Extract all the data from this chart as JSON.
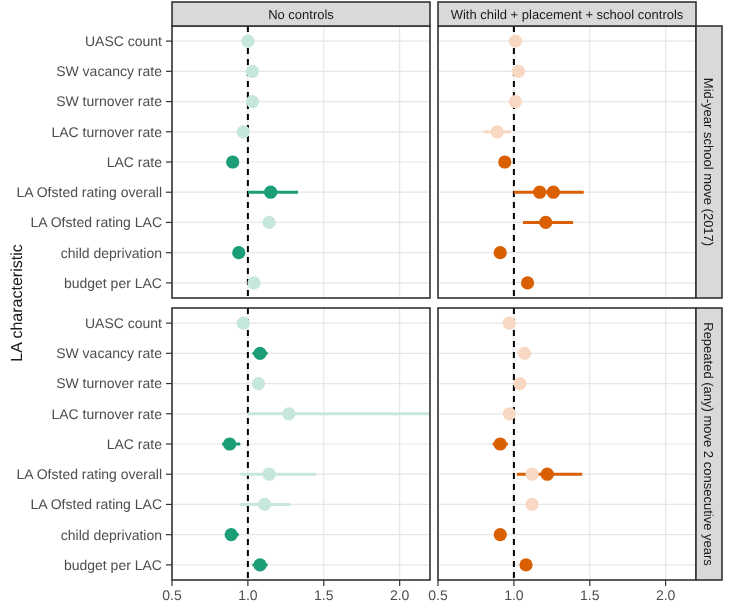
{
  "chart_data": [
    {
      "type": "scatter",
      "orientation": "horizontal",
      "title": "No controls",
      "ylabel": "LA characteristic",
      "categories": [
        "UASC count",
        "SW vacancy rate",
        "SW turnover rate",
        "LAC turnover rate",
        "LAC rate",
        "LA Ofsted rating overall",
        "LA Ofsted rating LAC",
        "child deprivation",
        "budget per LAC"
      ],
      "xlim": [
        0.5,
        2.2
      ],
      "xticks": [
        {
          "value": 0.5,
          "label": null
        },
        {
          "value": 1,
          "label": null
        },
        {
          "value": 1.5,
          "label": null
        },
        {
          "value": 2,
          "label": null
        }
      ],
      "grid": true,
      "marker": "circle",
      "tick_labels": "y",
      "ref_lines": [
        {
          "axis": "x",
          "value": 1,
          "line_style": "dashed",
          "color": "#000000"
        }
      ],
      "series": [
        {
          "color": "#1b9e77",
          "values": [
            null,
            null,
            null,
            null,
            0.9,
            1.15,
            null,
            0.94,
            null
          ],
          "errors": [
            null,
            null,
            null,
            null,
            [
              0.86,
              0.93
            ],
            [
              1.0,
              1.33
            ],
            null,
            [
              0.91,
              0.98
            ],
            null
          ]
        },
        {
          "color": "#c6e7dc",
          "values": [
            1.0,
            1.03,
            1.03,
            0.97,
            null,
            null,
            1.14,
            null,
            1.04
          ],
          "errors": [
            null,
            null,
            null,
            null,
            null,
            null,
            null,
            null,
            [
              1.01,
              1.07
            ]
          ]
        }
      ]
    },
    {
      "type": "scatter",
      "orientation": "horizontal",
      "title": "With child + placement + school controls",
      "y2label": "Mid-year school move (2017)",
      "categories": [
        null,
        null,
        null,
        null,
        null,
        null,
        null,
        null,
        null
      ],
      "xlim": [
        0.5,
        2.2
      ],
      "xticks": [
        {
          "value": 0.5,
          "label": null
        },
        {
          "value": 1,
          "label": null
        },
        {
          "value": 1.5,
          "label": null
        },
        {
          "value": 2,
          "label": null
        }
      ],
      "grid": true,
      "marker": "circle",
      "tick_labels": false,
      "ref_lines": [
        {
          "axis": "x",
          "value": 1,
          "line_style": "dashed",
          "color": "#000000"
        }
      ],
      "series": [
        {
          "color": "#d95f02",
          "values": [
            null,
            null,
            null,
            null,
            0.94,
            1.17,
            1.21,
            0.91,
            1.09
          ],
          "errors": [
            null,
            null,
            null,
            null,
            [
              0.91,
              0.97
            ],
            [
              1.0,
              1.46
            ],
            [
              1.06,
              1.39
            ],
            [
              0.88,
              0.94
            ],
            [
              1.06,
              1.13
            ]
          ]
        },
        {
          "color": "#d95f02",
          "values": [
            null,
            null,
            null,
            null,
            null,
            1.26,
            null,
            null,
            null
          ]
        },
        {
          "color": "#f8d8c2",
          "values": [
            1.01,
            1.03,
            1.01,
            0.89,
            null,
            null,
            null,
            null,
            null
          ],
          "errors": [
            null,
            null,
            null,
            [
              0.8,
              0.98
            ],
            null,
            null,
            null,
            null,
            null
          ]
        }
      ]
    },
    {
      "type": "scatter",
      "orientation": "horizontal",
      "categories": [
        "UASC count",
        "SW vacancy rate",
        "SW turnover rate",
        "LAC turnover rate",
        "LAC rate",
        "LA Ofsted rating overall",
        "LA Ofsted rating LAC",
        "child deprivation",
        "budget per LAC"
      ],
      "xlim": [
        0.5,
        2.2
      ],
      "xticks": [
        {
          "value": 0.5,
          "label": "0.5"
        },
        {
          "value": 1,
          "label": "1.0"
        },
        {
          "value": 1.5,
          "label": "1.5"
        },
        {
          "value": 2,
          "label": "2.0"
        }
      ],
      "grid": true,
      "marker": "circle",
      "ref_lines": [
        {
          "axis": "x",
          "value": 1,
          "line_style": "dashed",
          "color": "#000000"
        }
      ],
      "series": [
        {
          "color": "#1b9e77",
          "values": [
            null,
            1.08,
            null,
            null,
            0.88,
            null,
            null,
            0.89,
            1.08
          ],
          "errors": [
            null,
            [
              1.03,
              1.13
            ],
            null,
            null,
            [
              0.83,
              0.95
            ],
            null,
            null,
            [
              0.85,
              0.94
            ],
            [
              1.03,
              1.13
            ]
          ]
        },
        {
          "color": "#c6e7dc",
          "values": [
            0.97,
            null,
            1.07,
            1.27,
            null,
            1.14,
            1.11,
            null,
            null
          ],
          "errors": [
            [
              0.93,
              1.01
            ],
            null,
            null,
            [
              1.0,
              2.2
            ],
            null,
            [
              0.95,
              1.45
            ],
            [
              0.95,
              1.28
            ],
            null,
            null
          ]
        }
      ]
    },
    {
      "type": "scatter",
      "orientation": "horizontal",
      "y2label": "Repeated (any) move 2 consecutive years",
      "categories": [
        null,
        null,
        null,
        null,
        null,
        null,
        null,
        null,
        null
      ],
      "xlim": [
        0.5,
        2.2
      ],
      "xticks": [
        {
          "value": 0.5,
          "label": "0.5"
        },
        {
          "value": 1,
          "label": "1.0"
        },
        {
          "value": 1.5,
          "label": "1.5"
        },
        {
          "value": 2,
          "label": "2.0"
        }
      ],
      "grid": true,
      "marker": "circle",
      "tick_labels": "x",
      "ref_lines": [
        {
          "axis": "x",
          "value": 1,
          "line_style": "dashed",
          "color": "#000000"
        }
      ],
      "series": [
        {
          "color": "#d95f02",
          "values": [
            null,
            null,
            null,
            null,
            0.91,
            1.22,
            null,
            0.91,
            1.08
          ],
          "errors": [
            null,
            null,
            null,
            null,
            [
              0.86,
              0.96
            ],
            [
              1.02,
              1.45
            ],
            null,
            [
              0.87,
              0.95
            ],
            [
              1.04,
              1.12
            ]
          ]
        },
        {
          "color": "#f8d8c2",
          "values": [
            0.97,
            1.07,
            1.04,
            0.97,
            null,
            1.12,
            1.12,
            null,
            null
          ]
        }
      ]
    }
  ]
}
